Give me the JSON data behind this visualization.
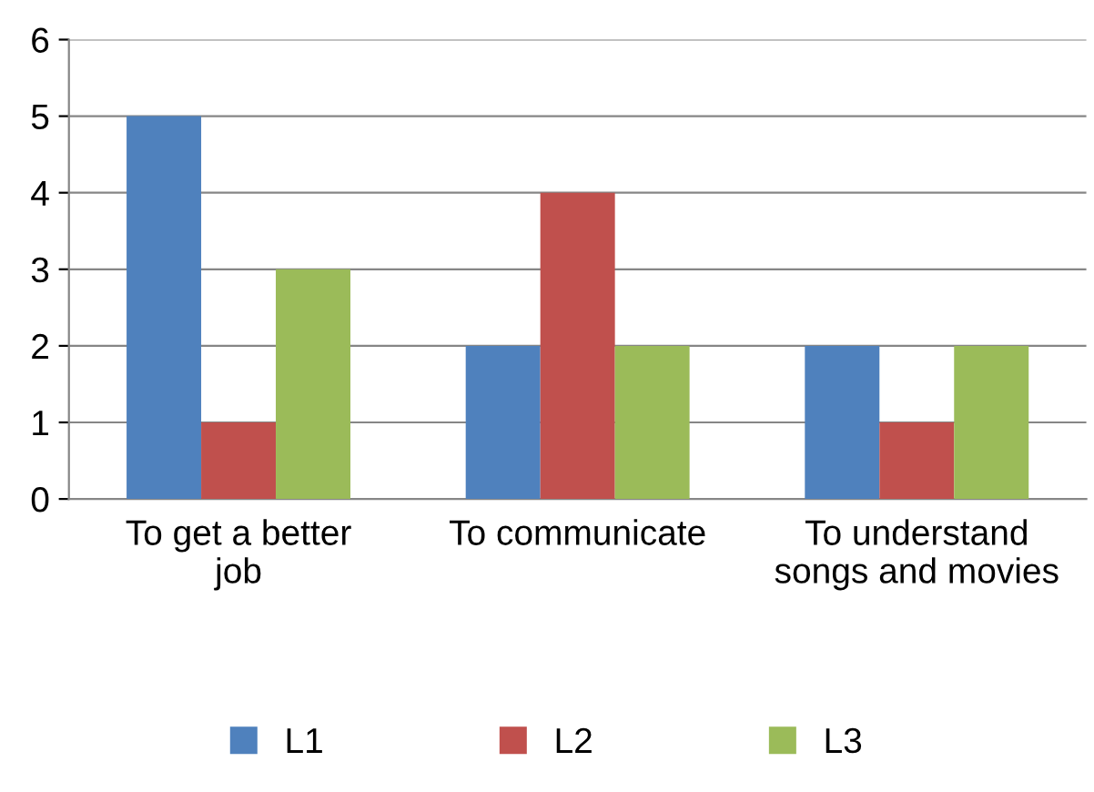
{
  "chart_data": {
    "type": "bar",
    "categories": [
      "To get a better job",
      "To communicate",
      "To understand songs and movies"
    ],
    "series": [
      {
        "name": "L1",
        "color": "#4f81bd",
        "values": [
          5,
          2,
          2
        ]
      },
      {
        "name": "L2",
        "color": "#c0504d",
        "values": [
          1,
          4,
          1
        ]
      },
      {
        "name": "L3",
        "color": "#9bbb59",
        "values": [
          3,
          2,
          2
        ]
      }
    ],
    "ylim": [
      0,
      6
    ],
    "yticks": [
      0,
      1,
      2,
      3,
      4,
      5,
      6
    ],
    "grid": "y",
    "legend": "bottom"
  }
}
